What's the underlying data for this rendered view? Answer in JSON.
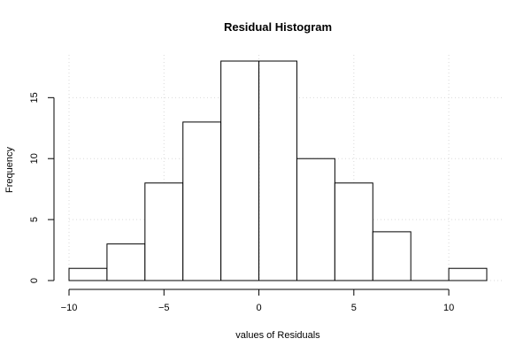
{
  "chart_data": {
    "type": "bar",
    "title": "Residual Histogram",
    "xlabel": "values of Residuals",
    "ylabel": "Frequency",
    "bins": [
      {
        "from": -10,
        "to": -8,
        "count": 1
      },
      {
        "from": -8,
        "to": -6,
        "count": 3
      },
      {
        "from": -6,
        "to": -4,
        "count": 8
      },
      {
        "from": -4,
        "to": -2,
        "count": 13
      },
      {
        "from": -2,
        "to": 0,
        "count": 18
      },
      {
        "from": 0,
        "to": 2,
        "count": 18
      },
      {
        "from": 2,
        "to": 4,
        "count": 10
      },
      {
        "from": 4,
        "to": 6,
        "count": 8
      },
      {
        "from": 6,
        "to": 8,
        "count": 4
      },
      {
        "from": 8,
        "to": 10,
        "count": 0
      },
      {
        "from": 10,
        "to": 12,
        "count": 1
      }
    ],
    "xlim": [
      -10,
      12
    ],
    "ylim": [
      0,
      18
    ],
    "x_ticks": [
      -10,
      -5,
      0,
      5,
      10
    ],
    "y_ticks": [
      0,
      5,
      10,
      15
    ],
    "x_tick_labels": [
      "−10",
      "−5",
      "0",
      "5",
      "10"
    ],
    "y_tick_labels": [
      "0",
      "5",
      "10",
      "15"
    ],
    "grid": true,
    "reference_line_x": 0
  }
}
